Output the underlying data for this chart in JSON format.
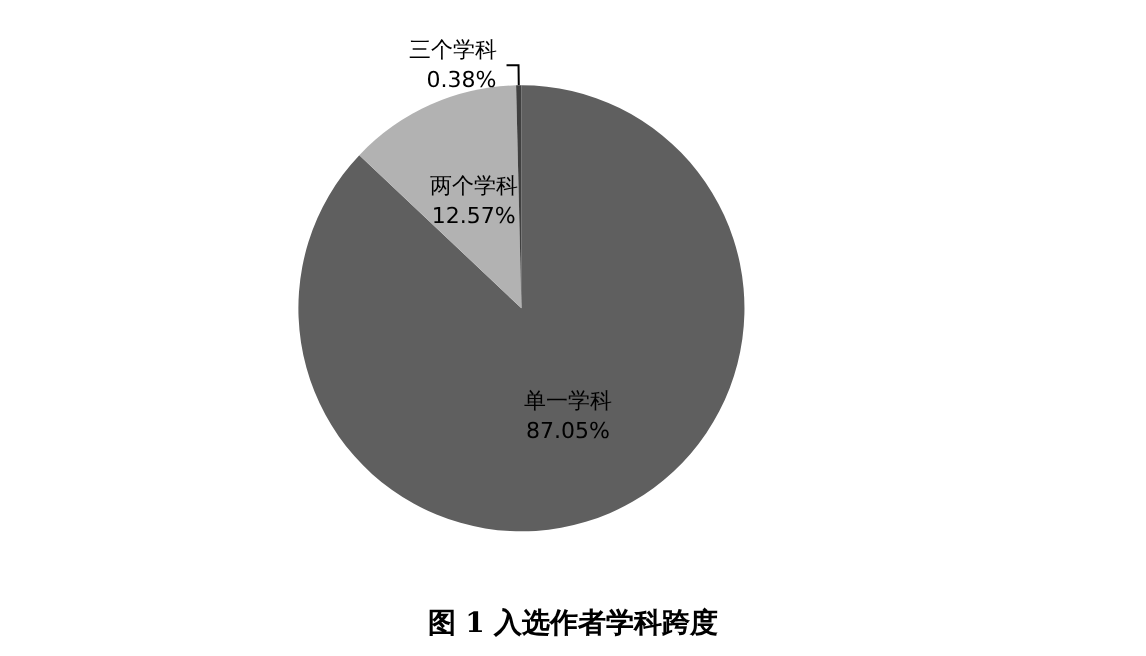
{
  "chart_data": {
    "type": "pie",
    "title": "图 1 入选作者学科跨度",
    "categories": [
      "单一学科",
      "两个学科",
      "三个学科"
    ],
    "values": [
      87.05,
      12.57,
      0.38
    ],
    "value_labels": [
      "87.05%",
      "12.57%",
      "0.38%"
    ],
    "colors": [
      "#5f5f5f",
      "#b2b2b2",
      "#404040"
    ],
    "legend": false
  }
}
